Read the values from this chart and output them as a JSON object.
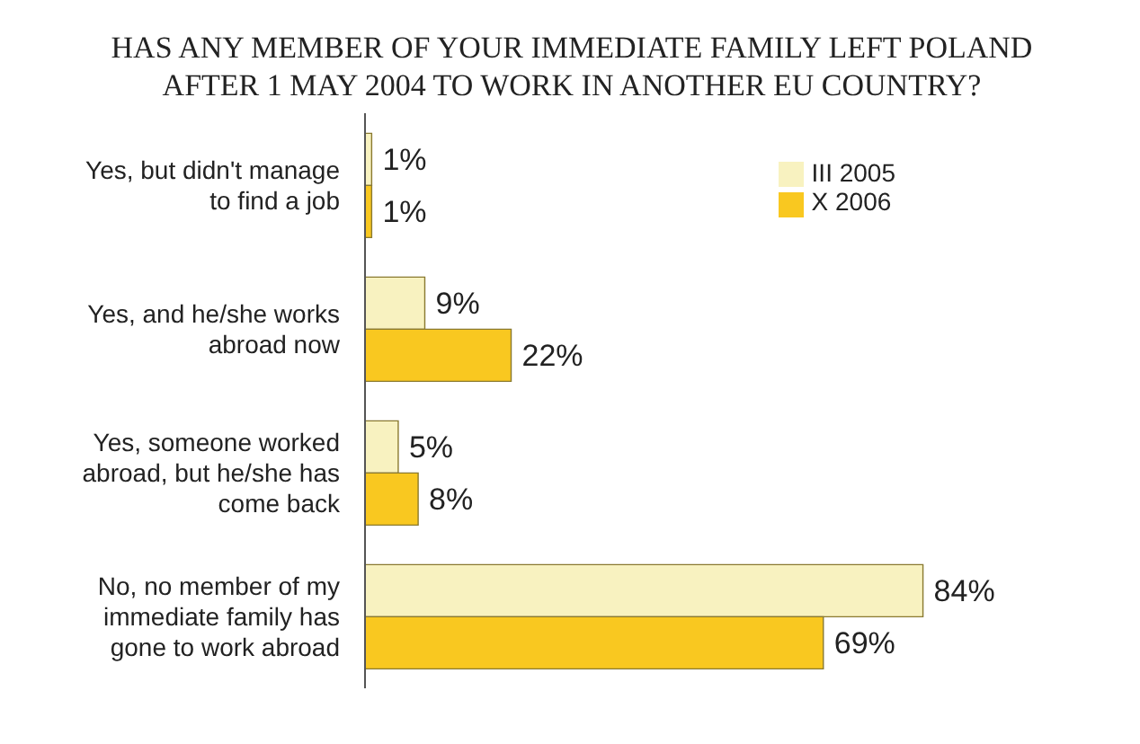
{
  "chart_data": {
    "type": "bar",
    "orientation": "horizontal",
    "title": "HAS ANY MEMBER OF YOUR IMMEDIATE FAMILY LEFT POLAND AFTER 1 MAY 2004 TO WORK IN ANOTHER EU COUNTRY?",
    "categories": [
      "Yes, but didn't manage to find a job",
      "Yes, and he/she works abroad now",
      "Yes, someone worked abroad, but he/she has come back",
      "No, no member of my immediate family has gone to work abroad"
    ],
    "series": [
      {
        "name": "III 2005",
        "color": "#f8f2c0",
        "values": [
          1,
          9,
          5,
          84
        ],
        "value_labels": [
          "1%",
          "9%",
          "5%",
          "84%"
        ]
      },
      {
        "name": "X 2006",
        "color": "#f9c820",
        "values": [
          1,
          22,
          8,
          69
        ],
        "value_labels": [
          "1%",
          "22%",
          "8%",
          "69%"
        ]
      }
    ],
    "legend": "top right"
  }
}
